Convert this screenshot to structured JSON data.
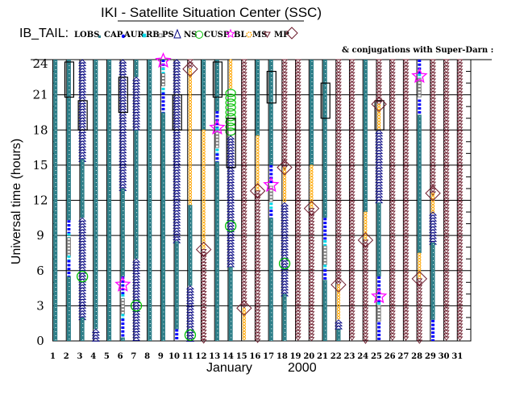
{
  "title": "IKI - Satellite Situation Center (SSC)",
  "region_label": "IB_TAIL:",
  "legend": [
    {
      "label": "LOBS",
      "symbol": "square",
      "color": "#2e7f89"
    },
    {
      "label": "CAP",
      "symbol": "dot",
      "color": "#0000ff"
    },
    {
      "label": "AUR",
      "symbol": "asterisk",
      "color": "#00d8e8"
    },
    {
      "label": "RB",
      "symbol": "square-outline",
      "color": "#808080"
    },
    {
      "label": "PS",
      "symbol": "triangle",
      "color": "#000080"
    },
    {
      "label": "NS",
      "symbol": "circle",
      "color": "#00c000"
    },
    {
      "label": "CUSP",
      "symbol": "star",
      "color": "#ff00ff"
    },
    {
      "label": "BL",
      "symbol": "sun",
      "color": "#ffa500"
    },
    {
      "label": "MS",
      "symbol": "triangle-down",
      "color": "#6b1a2a"
    },
    {
      "label": "MP",
      "symbol": "diamond",
      "color": "#6b1a2a"
    }
  ],
  "superdarn_note": "& conjugations with Super-Darn :",
  "chart_data": {
    "type": "scatter",
    "xlabel": "January",
    "xlabel_year": "2000",
    "ylabel": "Universal time (hours)",
    "xlim": [
      1,
      31
    ],
    "ylim": [
      0,
      24
    ],
    "x_ticks": [
      "1",
      "2",
      "3",
      "4",
      "5",
      "6",
      "7",
      "8",
      "9",
      "10",
      "11",
      "12",
      "13",
      "14",
      "15",
      "16",
      "17",
      "18",
      "19",
      "20",
      "21",
      "22",
      "23",
      "24",
      "25",
      "26",
      "27",
      "28",
      "29",
      "30",
      "31"
    ],
    "y_ticks": [
      "0",
      "3",
      "6",
      "9",
      "12",
      "15",
      "18",
      "21",
      "24"
    ],
    "grid": true,
    "days": [
      {
        "day": 1,
        "segments": [
          [
            0,
            24,
            "LOBS"
          ]
        ]
      },
      {
        "day": 2,
        "segments": [
          [
            10.3,
            24,
            "LOBS"
          ],
          [
            9,
            10.3,
            "CAP"
          ],
          [
            8.8,
            9.2,
            "AUR"
          ],
          [
            7.2,
            8.8,
            "RB"
          ],
          [
            6.9,
            7.3,
            "AUR"
          ],
          [
            5.5,
            6.9,
            "CAP"
          ],
          [
            0,
            5.5,
            "LOBS"
          ]
        ],
        "superdarn": [
          [
            20.8,
            23.8
          ]
        ]
      },
      {
        "day": 3,
        "segments": [
          [
            15.5,
            24,
            "NS"
          ],
          [
            10.5,
            15.5,
            "LOBS"
          ],
          [
            2,
            10.5,
            "NS"
          ],
          [
            0,
            2,
            "LOBS"
          ]
        ],
        "markers": [
          {
            "type": "CUSP",
            "hour": 5.5
          }
        ],
        "superdarn": [
          [
            18,
            20.5
          ]
        ]
      },
      {
        "day": 4,
        "segments": [
          [
            1,
            24,
            "LOBS"
          ],
          [
            0,
            1,
            "NS"
          ]
        ]
      },
      {
        "day": 5,
        "segments": [
          [
            0,
            24,
            "LOBS"
          ]
        ]
      },
      {
        "day": 6,
        "segments": [
          [
            13,
            24,
            "NS"
          ],
          [
            5.5,
            13,
            "LOBS"
          ],
          [
            3.8,
            5.5,
            "CAP"
          ],
          [
            3.6,
            4,
            "AUR"
          ],
          [
            2.2,
            3.6,
            "RB"
          ],
          [
            1.9,
            2.3,
            "AUR"
          ],
          [
            0.3,
            1.9,
            "CAP"
          ],
          [
            0,
            0.3,
            "LOBS"
          ]
        ],
        "markers": [
          {
            "type": "BL",
            "hour": 4.8
          }
        ],
        "superdarn": [
          [
            19.5,
            22.5
          ]
        ]
      },
      {
        "day": 7,
        "segments": [
          [
            22.5,
            24,
            "LOBS"
          ],
          [
            18,
            22.5,
            "NS"
          ],
          [
            7,
            18,
            "LOBS"
          ],
          [
            0,
            7,
            "NS"
          ]
        ],
        "markers": [
          {
            "type": "CUSP",
            "hour": 3
          }
        ]
      },
      {
        "day": 8,
        "segments": [
          [
            0,
            24,
            "LOBS"
          ]
        ]
      },
      {
        "day": 9,
        "segments": [
          [
            23.3,
            24,
            "CAP"
          ],
          [
            22.8,
            23.3,
            "AUR"
          ],
          [
            21.6,
            22.8,
            "RB"
          ],
          [
            21.2,
            21.6,
            "AUR"
          ],
          [
            19.5,
            21.2,
            "CAP"
          ],
          [
            0,
            19.5,
            "LOBS"
          ]
        ],
        "markers": [
          {
            "type": "BL",
            "hour": 23.9
          }
        ]
      },
      {
        "day": 10,
        "segments": [
          [
            8.5,
            24,
            "NS"
          ],
          [
            1,
            8.5,
            "LOBS"
          ],
          [
            0,
            1,
            "CAP"
          ]
        ],
        "superdarn": [
          [
            18,
            21
          ]
        ]
      },
      {
        "day": 11,
        "segments": [
          [
            23.2,
            24,
            "MP"
          ],
          [
            11.6,
            23.2,
            "MS"
          ],
          [
            4.7,
            11.6,
            "LOBS"
          ],
          [
            0,
            4.7,
            "NS"
          ]
        ],
        "markers": [
          {
            "type": "MP",
            "hour": 23.2
          },
          {
            "type": "CUSP",
            "hour": 0.5
          }
        ]
      },
      {
        "day": 12,
        "segments": [
          [
            18,
            24,
            "LOBS"
          ],
          [
            7.8,
            18,
            "MS"
          ],
          [
            0,
            7.8,
            "MP"
          ]
        ],
        "markers": [
          {
            "type": "MP",
            "hour": 7.8
          }
        ]
      },
      {
        "day": 13,
        "segments": [
          [
            19.6,
            24,
            "LOBS"
          ],
          [
            18.2,
            19.6,
            "CAP"
          ],
          [
            17.8,
            18.2,
            "AUR"
          ],
          [
            16.4,
            17.8,
            "RB"
          ],
          [
            16,
            16.4,
            "AUR"
          ],
          [
            15.3,
            16,
            "CAP"
          ],
          [
            0,
            15.3,
            "LOBS"
          ]
        ],
        "markers": [
          {
            "type": "BL",
            "hour": 18.2
          }
        ],
        "superdarn": [
          [
            20.8,
            23.8
          ]
        ]
      },
      {
        "day": 14,
        "segments": [
          [
            21.5,
            24,
            "MS"
          ],
          [
            17.5,
            21.5,
            "CUSP"
          ],
          [
            6.3,
            17.5,
            "NS"
          ],
          [
            0,
            6.3,
            "LOBS"
          ]
        ],
        "markers": [
          {
            "type": "CUSP",
            "hour": 9.8
          }
        ],
        "superdarn": [
          [
            14.8,
            19
          ]
        ]
      },
      {
        "day": 15,
        "segments": [
          [
            2.8,
            24,
            "MP"
          ],
          [
            0,
            2.8,
            "MS"
          ]
        ],
        "markers": [
          {
            "type": "MP",
            "hour": 2.8
          }
        ]
      },
      {
        "day": 16,
        "segments": [
          [
            17.5,
            24,
            "LOBS"
          ],
          [
            12.8,
            17.5,
            "MS"
          ],
          [
            0,
            12.8,
            "MP"
          ]
        ],
        "markers": [
          {
            "type": "MP",
            "hour": 12.8
          }
        ]
      },
      {
        "day": 17,
        "segments": [
          [
            15,
            24,
            "LOBS"
          ],
          [
            13.4,
            15,
            "CAP"
          ],
          [
            11.8,
            13.2,
            "RB"
          ],
          [
            11.2,
            11.8,
            "AUR"
          ],
          [
            10.5,
            11.2,
            "CAP"
          ],
          [
            0,
            10.5,
            "LOBS"
          ]
        ],
        "markers": [
          {
            "type": "BL",
            "hour": 13.3
          }
        ],
        "superdarn": [
          [
            20.3,
            23
          ]
        ]
      },
      {
        "day": 18,
        "segments": [
          [
            14.8,
            24,
            "MP"
          ],
          [
            11.8,
            14.8,
            "MS"
          ],
          [
            4,
            11.8,
            "NS"
          ],
          [
            0,
            4,
            "LOBS"
          ]
        ],
        "markers": [
          {
            "type": "MP",
            "hour": 14.8
          },
          {
            "type": "CUSP",
            "hour": 6.6
          }
        ]
      },
      {
        "day": 19,
        "segments": [
          [
            0,
            24,
            "MP"
          ]
        ]
      },
      {
        "day": 20,
        "segments": [
          [
            15,
            24,
            "LOBS"
          ],
          [
            11.3,
            15,
            "MS"
          ],
          [
            0,
            11.3,
            "MP"
          ]
        ],
        "markers": [
          {
            "type": "MP",
            "hour": 11.3
          }
        ]
      },
      {
        "day": 21,
        "segments": [
          [
            10.5,
            24,
            "LOBS"
          ],
          [
            8.6,
            10.5,
            "CAP"
          ],
          [
            8.1,
            8.6,
            "AUR"
          ],
          [
            6.5,
            8.1,
            "RB"
          ],
          [
            6.1,
            6.5,
            "AUR"
          ],
          [
            5.2,
            6.1,
            "CAP"
          ],
          [
            0,
            5.2,
            "LOBS"
          ]
        ],
        "superdarn": [
          [
            19,
            22
          ]
        ]
      },
      {
        "day": 22,
        "segments": [
          [
            4.8,
            24,
            "MP"
          ],
          [
            1.8,
            4.8,
            "MS"
          ],
          [
            1,
            1.8,
            "NS"
          ],
          [
            0,
            1,
            "LOBS"
          ]
        ],
        "markers": [
          {
            "type": "MP",
            "hour": 4.8
          }
        ]
      },
      {
        "day": 23,
        "segments": [
          [
            0,
            24,
            "MP"
          ]
        ]
      },
      {
        "day": 24,
        "segments": [
          [
            11,
            24,
            "LOBS"
          ],
          [
            8.6,
            11,
            "MS"
          ],
          [
            0,
            8.6,
            "MP"
          ]
        ],
        "markers": [
          {
            "type": "MP",
            "hour": 8.6
          }
        ]
      },
      {
        "day": 25,
        "segments": [
          [
            20.2,
            24,
            "MP"
          ],
          [
            18,
            20.2,
            "MS"
          ],
          [
            11.8,
            18,
            "NS"
          ],
          [
            5.5,
            11.8,
            "LOBS"
          ],
          [
            3.3,
            5.5,
            "CAP"
          ],
          [
            3,
            3.3,
            "AUR"
          ],
          [
            1.6,
            3,
            "RB"
          ],
          [
            0,
            1.6,
            "CAP"
          ]
        ],
        "markers": [
          {
            "type": "MP",
            "hour": 20.2
          },
          {
            "type": "BL",
            "hour": 3.8
          }
        ],
        "superdarn": [
          [
            18,
            20.5
          ]
        ]
      },
      {
        "day": 26,
        "segments": [
          [
            0,
            24,
            "MP"
          ]
        ]
      },
      {
        "day": 27,
        "segments": [
          [
            0,
            24,
            "MP"
          ]
        ]
      },
      {
        "day": 28,
        "segments": [
          [
            22.8,
            24,
            "CAP"
          ],
          [
            22.4,
            22.8,
            "AUR"
          ],
          [
            20.7,
            22.4,
            "RB"
          ],
          [
            19.3,
            20.6,
            "CAP"
          ],
          [
            7.5,
            19.3,
            "LOBS"
          ],
          [
            5.3,
            7.5,
            "MS"
          ],
          [
            0,
            5.3,
            "MP"
          ]
        ],
        "markers": [
          {
            "type": "BL",
            "hour": 22.6
          },
          {
            "type": "MP",
            "hour": 5.3
          }
        ]
      },
      {
        "day": 29,
        "segments": [
          [
            12.6,
            24,
            "MP"
          ],
          [
            11,
            12.6,
            "MS"
          ],
          [
            8.4,
            11,
            "NS"
          ],
          [
            1.8,
            8.4,
            "LOBS"
          ],
          [
            0,
            1.8,
            "CAP"
          ]
        ],
        "markers": [
          {
            "type": "MP",
            "hour": 12.6
          }
        ]
      },
      {
        "day": 30,
        "segments": [
          [
            0,
            24,
            "MP"
          ]
        ]
      },
      {
        "day": 31,
        "segments": [
          [
            0,
            24,
            "MP"
          ]
        ]
      }
    ]
  }
}
